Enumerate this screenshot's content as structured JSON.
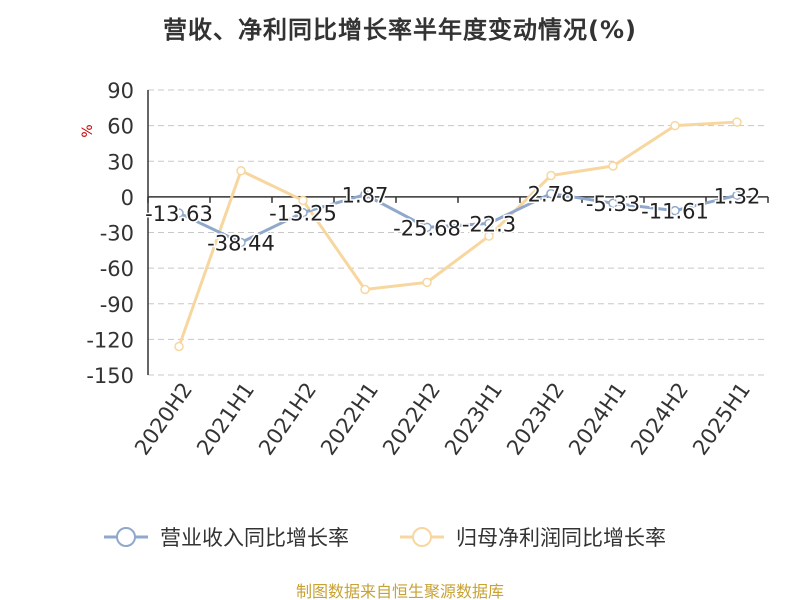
{
  "title": "营收、净利同比增长率半年度变动情况(%)",
  "source": "制图数据来自恒生聚源数据库",
  "colors": {
    "revenue": "#8fa8cc",
    "profit": "#f7d79f",
    "axis": "#333333",
    "grid": "#c8c8c8",
    "ylabel": "#cc0000",
    "source": "#c8a235"
  },
  "chart_data": {
    "type": "line",
    "title": "营收、净利同比增长率半年度变动情况(%)",
    "ylabel": "%",
    "xlabel": "",
    "categories": [
      "2020H2",
      "2021H1",
      "2021H2",
      "2022H1",
      "2022H2",
      "2023H1",
      "2023H2",
      "2024H1",
      "2024H2",
      "2025H1"
    ],
    "ylim": [
      -150,
      90
    ],
    "yticks": [
      90,
      60,
      30,
      0,
      -30,
      -60,
      -90,
      -120,
      -150
    ],
    "grid": true,
    "legend_position": "bottom",
    "series": [
      {
        "name": "营业收入同比增长率",
        "values": [
          -13.63,
          -38.44,
          -13.25,
          1.87,
          -25.68,
          -22.3,
          2.78,
          -5.33,
          -11.61,
          1.32
        ],
        "labels": [
          "-13.63",
          "-38.44",
          "-13.25",
          "1.87",
          "-25.68",
          "-22.3",
          "2.78",
          "-5.33",
          "-11.61",
          "1.32"
        ]
      },
      {
        "name": "归母净利润同比增长率",
        "values": [
          -126,
          22,
          -3,
          -78,
          -72,
          -33,
          18,
          26,
          60,
          63
        ]
      }
    ]
  }
}
